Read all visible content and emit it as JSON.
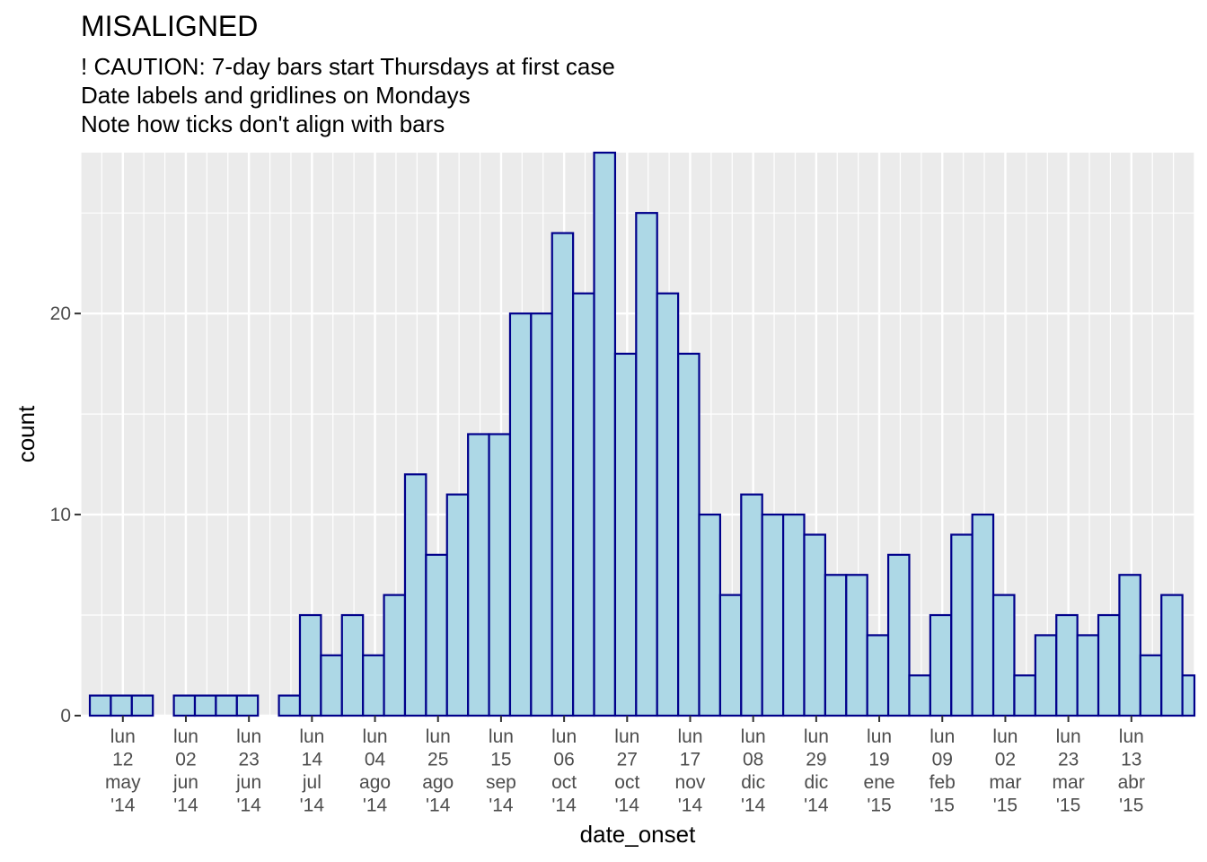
{
  "chart_data": {
    "type": "bar",
    "title": "MISALIGNED",
    "subtitle_lines": [
      "! CAUTION: 7-day bars start Thursdays at first case",
      "Date labels and gridlines on Mondays",
      "Note how ticks don't align with bars"
    ],
    "xlabel": "date_onset",
    "ylabel": "count",
    "bin_width_days": 7,
    "x_range": [
      "2014-04-28",
      "2015-05-04"
    ],
    "ylim": [
      0,
      28
    ],
    "y_ticks": [
      0,
      10,
      20
    ],
    "grid": true,
    "legend": "none",
    "bars": [
      {
        "start": "2014-05-01",
        "value": 1
      },
      {
        "start": "2014-05-08",
        "value": 1
      },
      {
        "start": "2014-05-15",
        "value": 1
      },
      {
        "start": "2014-05-22",
        "value": 0
      },
      {
        "start": "2014-05-29",
        "value": 1
      },
      {
        "start": "2014-06-05",
        "value": 1
      },
      {
        "start": "2014-06-12",
        "value": 1
      },
      {
        "start": "2014-06-19",
        "value": 1
      },
      {
        "start": "2014-06-26",
        "value": 0
      },
      {
        "start": "2014-07-03",
        "value": 1
      },
      {
        "start": "2014-07-10",
        "value": 5
      },
      {
        "start": "2014-07-17",
        "value": 3
      },
      {
        "start": "2014-07-24",
        "value": 5
      },
      {
        "start": "2014-07-31",
        "value": 3
      },
      {
        "start": "2014-08-07",
        "value": 6
      },
      {
        "start": "2014-08-14",
        "value": 12
      },
      {
        "start": "2014-08-21",
        "value": 8
      },
      {
        "start": "2014-08-28",
        "value": 11
      },
      {
        "start": "2014-09-04",
        "value": 14
      },
      {
        "start": "2014-09-11",
        "value": 14
      },
      {
        "start": "2014-09-18",
        "value": 20
      },
      {
        "start": "2014-09-25",
        "value": 20
      },
      {
        "start": "2014-10-02",
        "value": 24
      },
      {
        "start": "2014-10-09",
        "value": 21
      },
      {
        "start": "2014-10-16",
        "value": 28
      },
      {
        "start": "2014-10-23",
        "value": 18
      },
      {
        "start": "2014-10-30",
        "value": 25
      },
      {
        "start": "2014-11-06",
        "value": 21
      },
      {
        "start": "2014-11-13",
        "value": 18
      },
      {
        "start": "2014-11-20",
        "value": 10
      },
      {
        "start": "2014-11-27",
        "value": 6
      },
      {
        "start": "2014-12-04",
        "value": 11
      },
      {
        "start": "2014-12-11",
        "value": 10
      },
      {
        "start": "2014-12-18",
        "value": 10
      },
      {
        "start": "2014-12-25",
        "value": 9
      },
      {
        "start": "2015-01-01",
        "value": 7
      },
      {
        "start": "2015-01-08",
        "value": 7
      },
      {
        "start": "2015-01-15",
        "value": 4
      },
      {
        "start": "2015-01-22",
        "value": 8
      },
      {
        "start": "2015-01-29",
        "value": 2
      },
      {
        "start": "2015-02-05",
        "value": 5
      },
      {
        "start": "2015-02-12",
        "value": 9
      },
      {
        "start": "2015-02-19",
        "value": 10
      },
      {
        "start": "2015-02-26",
        "value": 6
      },
      {
        "start": "2015-03-05",
        "value": 2
      },
      {
        "start": "2015-03-12",
        "value": 4
      },
      {
        "start": "2015-03-19",
        "value": 5
      },
      {
        "start": "2015-03-26",
        "value": 4
      },
      {
        "start": "2015-04-02",
        "value": 5
      },
      {
        "start": "2015-04-09",
        "value": 7
      },
      {
        "start": "2015-04-16",
        "value": 3
      },
      {
        "start": "2015-04-23",
        "value": 6
      },
      {
        "start": "2015-04-30",
        "value": 2
      }
    ],
    "x_ticks": [
      {
        "date": "2014-05-12",
        "lines": [
          "lun",
          "12",
          "may",
          "'14"
        ]
      },
      {
        "date": "2014-06-02",
        "lines": [
          "lun",
          "02",
          "jun",
          "'14"
        ]
      },
      {
        "date": "2014-06-23",
        "lines": [
          "lun",
          "23",
          "jun",
          "'14"
        ]
      },
      {
        "date": "2014-07-14",
        "lines": [
          "lun",
          "14",
          "jul",
          "'14"
        ]
      },
      {
        "date": "2014-08-04",
        "lines": [
          "lun",
          "04",
          "ago",
          "'14"
        ]
      },
      {
        "date": "2014-08-25",
        "lines": [
          "lun",
          "25",
          "ago",
          "'14"
        ]
      },
      {
        "date": "2014-09-15",
        "lines": [
          "lun",
          "15",
          "sep",
          "'14"
        ]
      },
      {
        "date": "2014-10-06",
        "lines": [
          "lun",
          "06",
          "oct",
          "'14"
        ]
      },
      {
        "date": "2014-10-27",
        "lines": [
          "lun",
          "27",
          "oct",
          "'14"
        ]
      },
      {
        "date": "2014-11-17",
        "lines": [
          "lun",
          "17",
          "nov",
          "'14"
        ]
      },
      {
        "date": "2014-12-08",
        "lines": [
          "lun",
          "08",
          "dic",
          "'14"
        ]
      },
      {
        "date": "2014-12-29",
        "lines": [
          "lun",
          "29",
          "dic",
          "'14"
        ]
      },
      {
        "date": "2015-01-19",
        "lines": [
          "lun",
          "19",
          "ene",
          "'15"
        ]
      },
      {
        "date": "2015-02-09",
        "lines": [
          "lun",
          "09",
          "feb",
          "'15"
        ]
      },
      {
        "date": "2015-03-02",
        "lines": [
          "lun",
          "02",
          "mar",
          "'15"
        ]
      },
      {
        "date": "2015-03-23",
        "lines": [
          "lun",
          "23",
          "mar",
          "'15"
        ]
      },
      {
        "date": "2015-04-13",
        "lines": [
          "lun",
          "13",
          "abr",
          "'15"
        ]
      }
    ],
    "colors": {
      "bar_fill": "#ADD8E6",
      "bar_outline": "#00008B",
      "panel_background": "#EBEBEB",
      "grid": "#FFFFFF",
      "tick_text": "#4D4D4D",
      "tick_mark": "#333333"
    }
  }
}
